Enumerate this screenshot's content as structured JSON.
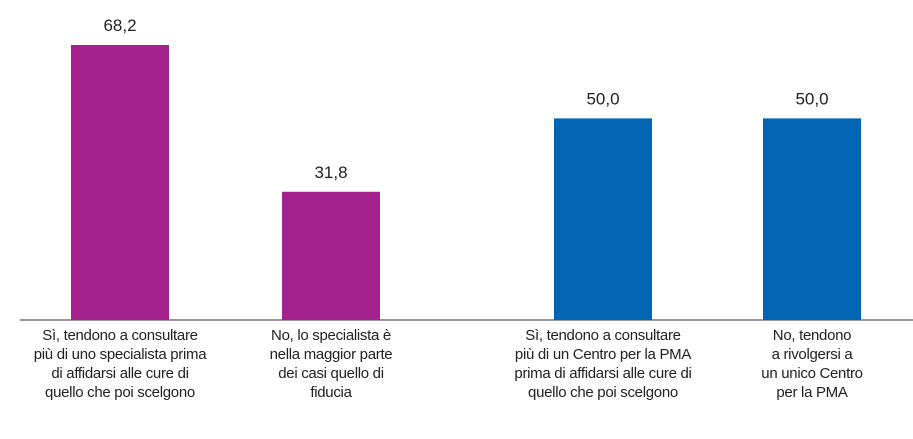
{
  "chart_data": {
    "type": "bar",
    "categories": [
      "Sì, tendono a consultare\npiù di uno specialista prima\ndi affidarsi alle cure di\nquello che poi scelgono",
      "No, lo specialista è\nnella maggior parte\ndei casi quello di\nfiducia",
      "Sì, tendono a consultare\npiù di un Centro per la PMA\nprima di affidarsi alle cure di\nquello che poi scelgono",
      "No, tendono\na rivolgersi a\nun unico Centro\nper la PMA"
    ],
    "values": [
      68.2,
      31.8,
      50.0,
      50.0
    ],
    "value_labels": [
      "68,2",
      "31,8",
      "50,0",
      "50,0"
    ],
    "colors": [
      "#a3208d",
      "#a3208d",
      "#0066b3",
      "#0066b3"
    ]
  }
}
